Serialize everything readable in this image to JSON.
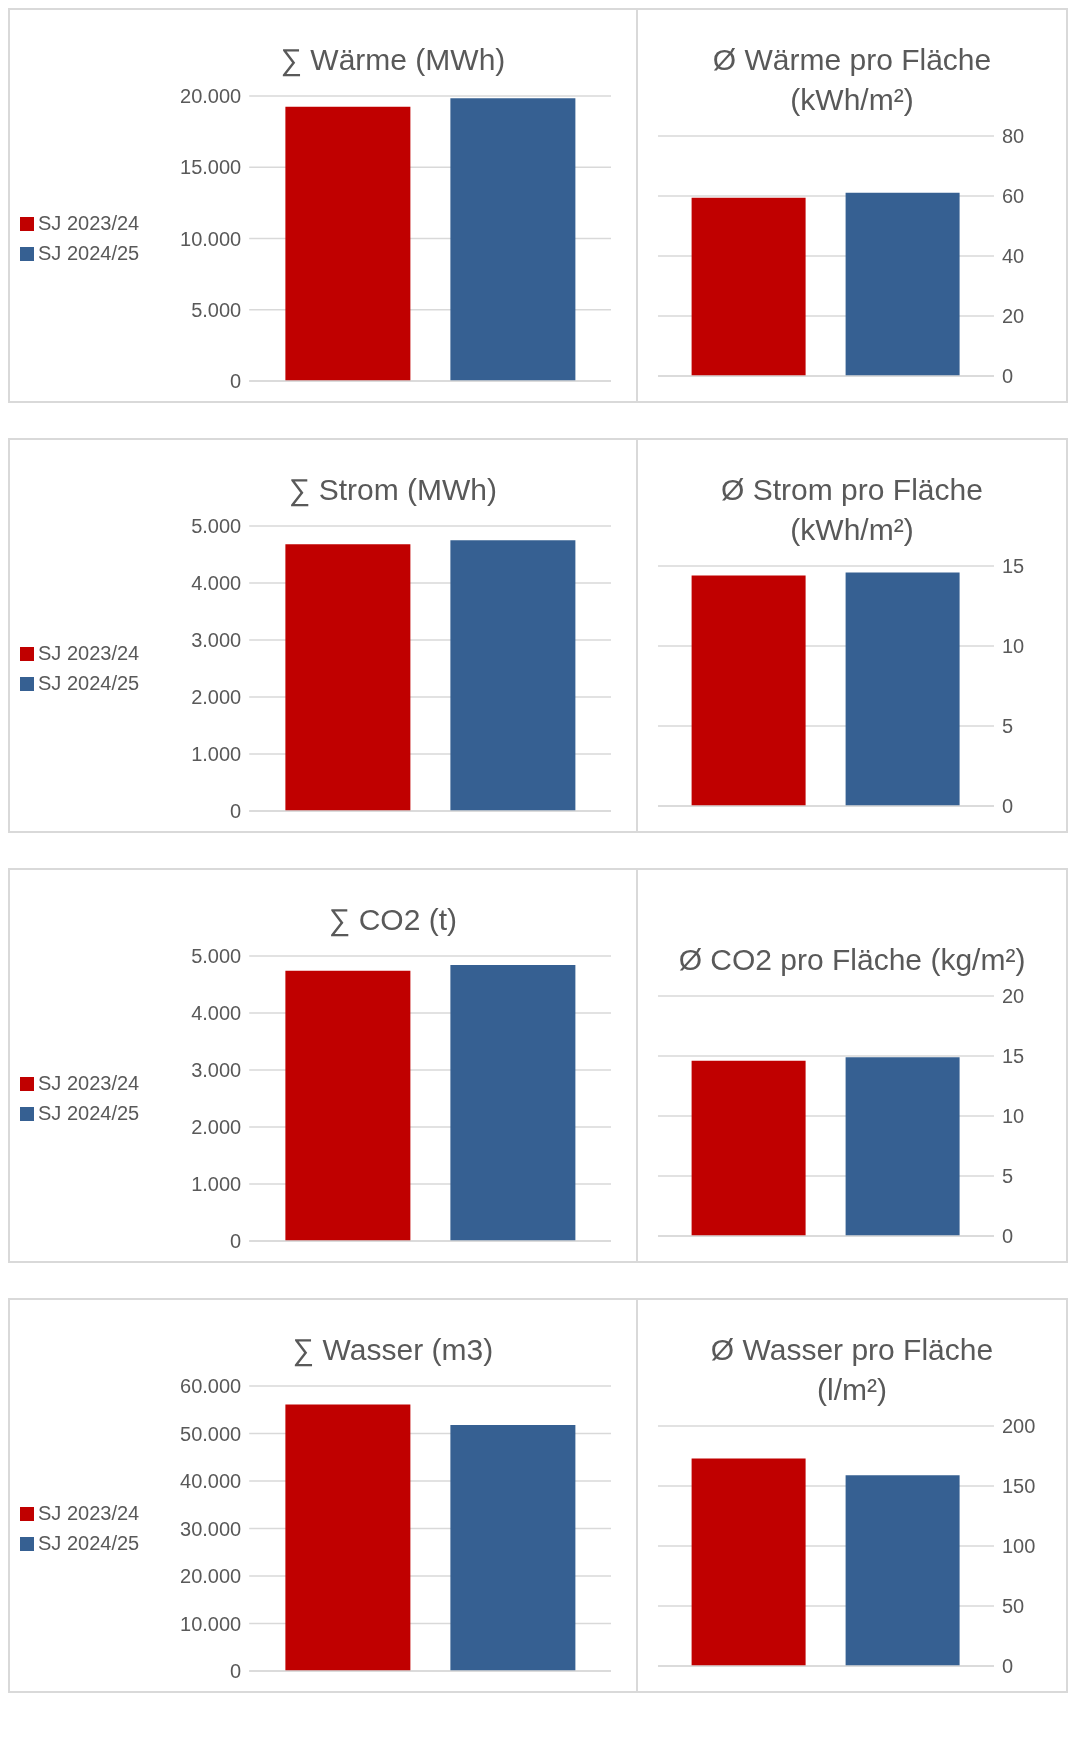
{
  "chart_data": [
    {
      "type": "bar",
      "title": "∑ Wärme (MWh)",
      "categories": [
        null
      ],
      "series": [
        {
          "name": "SJ 2023/24",
          "color": "#c00000",
          "values": [
            19250
          ]
        },
        {
          "name": "SJ 2024/25",
          "color": "#366092",
          "values": [
            19850
          ]
        }
      ],
      "ylim": [
        0,
        20000
      ],
      "yticks": [
        {
          "value": 0,
          "label": "0"
        },
        {
          "value": 5000,
          "label": "5.000"
        },
        {
          "value": 10000,
          "label": "10.000"
        },
        {
          "value": 15000,
          "label": "15.000"
        },
        {
          "value": 20000,
          "label": "20.000"
        }
      ],
      "grid": "y",
      "legend": "left",
      "tick_labels": "y"
    },
    {
      "type": "bar",
      "title": "Ø Wärme pro Fläche (kWh/m²)",
      "categories": [
        null
      ],
      "series": [
        {
          "color": "#c00000",
          "values": [
            59.4
          ]
        },
        {
          "color": "#366092",
          "values": [
            61.1
          ]
        }
      ],
      "ylim": [
        0,
        80
      ],
      "yticks": [
        0,
        20,
        40,
        60,
        80
      ],
      "grid": "y",
      "tick_labels": "y"
    },
    {
      "type": "bar",
      "title": "∑ Strom (MWh)",
      "categories": [
        null
      ],
      "series": [
        {
          "name": "SJ 2023/24",
          "color": "#c00000",
          "values": [
            4680
          ]
        },
        {
          "name": "SJ 2024/25",
          "color": "#366092",
          "values": [
            4750
          ]
        }
      ],
      "ylim": [
        0,
        5000
      ],
      "yticks": [
        {
          "value": 0,
          "label": "0"
        },
        {
          "value": 1000,
          "label": "1.000"
        },
        {
          "value": 2000,
          "label": "2.000"
        },
        {
          "value": 3000,
          "label": "3.000"
        },
        {
          "value": 4000,
          "label": "4.000"
        },
        {
          "value": 5000,
          "label": "5.000"
        }
      ],
      "grid": "y",
      "legend": "left",
      "tick_labels": "y"
    },
    {
      "type": "bar",
      "title": "Ø Strom pro Fläche (kWh/m²)",
      "categories": [
        null
      ],
      "series": [
        {
          "color": "#c00000",
          "values": [
            14.4
          ]
        },
        {
          "color": "#366092",
          "values": [
            14.6
          ]
        }
      ],
      "ylim": [
        0,
        15
      ],
      "yticks": [
        0,
        5,
        10,
        15
      ],
      "grid": "y",
      "tick_labels": "y"
    },
    {
      "type": "bar",
      "title": "∑ CO2 (t)",
      "categories": [
        null
      ],
      "series": [
        {
          "name": "SJ 2023/24",
          "color": "#c00000",
          "values": [
            4740
          ]
        },
        {
          "name": "SJ 2024/25",
          "color": "#366092",
          "values": [
            4840
          ]
        }
      ],
      "ylim": [
        0,
        5000
      ],
      "yticks": [
        {
          "value": 0,
          "label": "0"
        },
        {
          "value": 1000,
          "label": "1.000"
        },
        {
          "value": 2000,
          "label": "2.000"
        },
        {
          "value": 3000,
          "label": "3.000"
        },
        {
          "value": 4000,
          "label": "4.000"
        },
        {
          "value": 5000,
          "label": "5.000"
        }
      ],
      "grid": "y",
      "legend": "left",
      "tick_labels": "y"
    },
    {
      "type": "bar",
      "title": "Ø CO2 pro Fläche (kg/m²)",
      "categories": [
        null
      ],
      "series": [
        {
          "color": "#c00000",
          "values": [
            14.6
          ]
        },
        {
          "color": "#366092",
          "values": [
            14.9
          ]
        }
      ],
      "ylim": [
        0,
        20
      ],
      "yticks": [
        0,
        5,
        10,
        15,
        20
      ],
      "grid": "y",
      "tick_labels": "y"
    },
    {
      "type": "bar",
      "title": "∑ Wasser (m3)",
      "categories": [
        null
      ],
      "series": [
        {
          "name": "SJ 2023/24",
          "color": "#c00000",
          "values": [
            56100
          ]
        },
        {
          "name": "SJ 2024/25",
          "color": "#366092",
          "values": [
            51800
          ]
        }
      ],
      "ylim": [
        0,
        60000
      ],
      "yticks": [
        {
          "value": 0,
          "label": "0"
        },
        {
          "value": 10000,
          "label": "10.000"
        },
        {
          "value": 20000,
          "label": "20.000"
        },
        {
          "value": 30000,
          "label": "30.000"
        },
        {
          "value": 40000,
          "label": "40.000"
        },
        {
          "value": 50000,
          "label": "50.000"
        },
        {
          "value": 60000,
          "label": "60.000"
        }
      ],
      "grid": "y",
      "legend": "left",
      "tick_labels": "y"
    },
    {
      "type": "bar",
      "title": "Ø Wasser pro Fläche (l/m²)",
      "categories": [
        null
      ],
      "series": [
        {
          "color": "#c00000",
          "values": [
            173
          ]
        },
        {
          "color": "#366092",
          "values": [
            159
          ]
        }
      ],
      "ylim": [
        0,
        200
      ],
      "yticks": [
        0,
        50,
        100,
        150,
        200
      ],
      "grid": "y",
      "tick_labels": "y"
    }
  ]
}
